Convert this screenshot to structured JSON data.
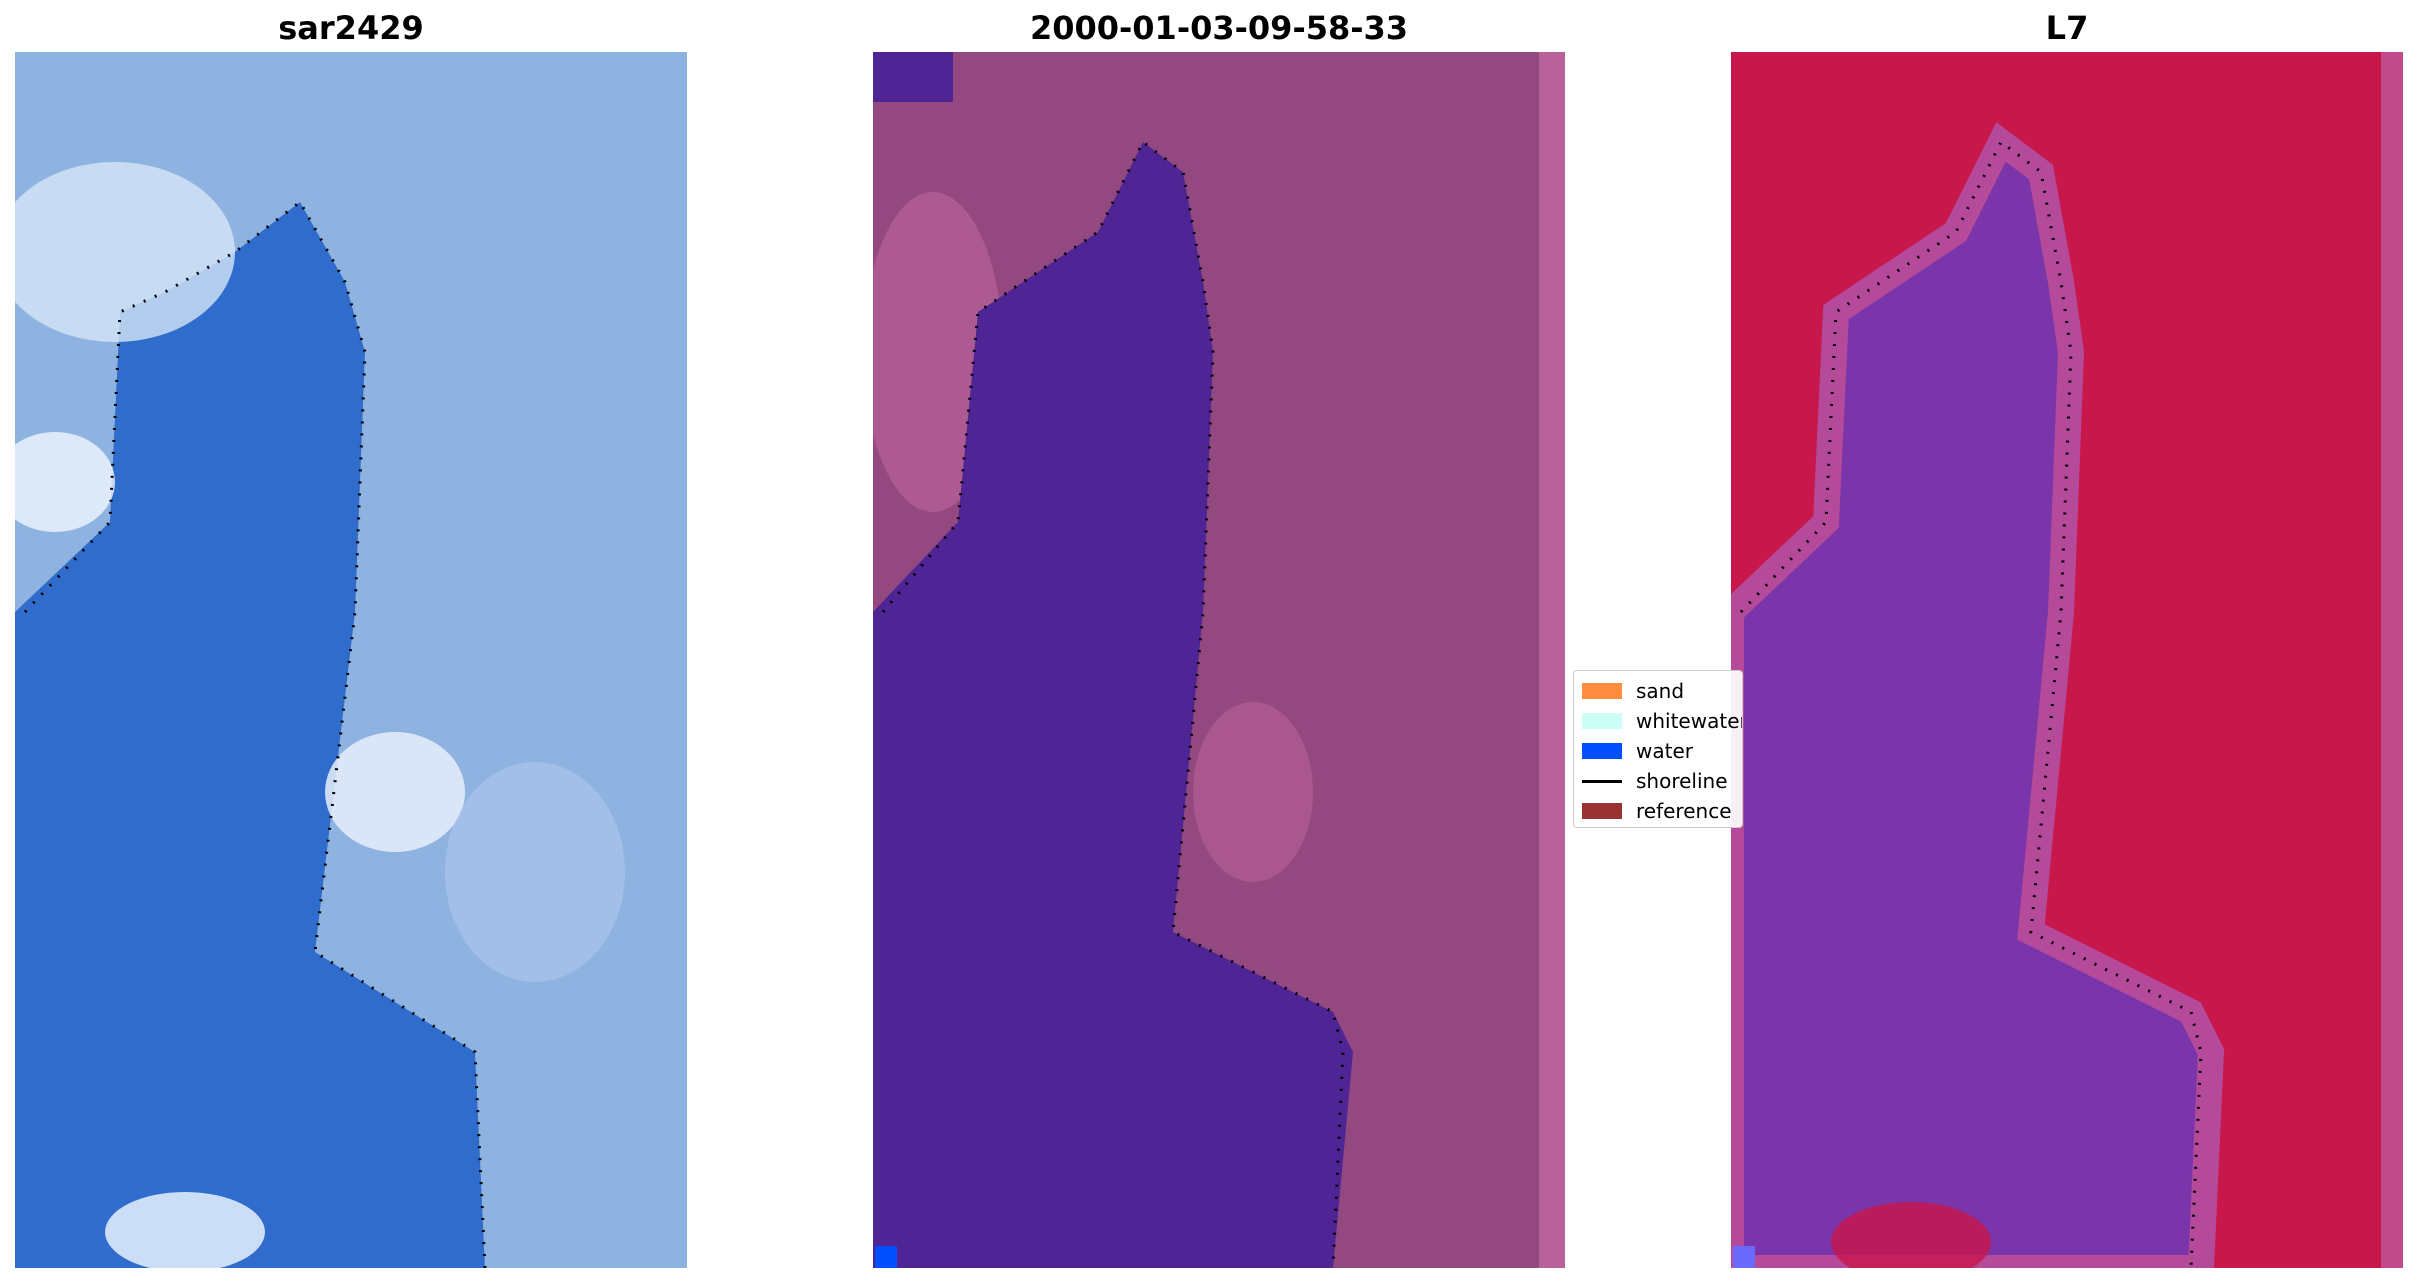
{
  "panels": [
    {
      "title": "sar2429"
    },
    {
      "title": "2000-01-03-09-58-33"
    },
    {
      "title": "L7"
    }
  ],
  "legend": {
    "items": [
      {
        "label": "sand",
        "color": "#ff8c3f"
      },
      {
        "label": "whitewater",
        "color": "#ccfff6"
      },
      {
        "label": "water",
        "color": "#0050ff"
      },
      {
        "label": "shoreline",
        "color": "#000000"
      },
      {
        "label": "reference",
        "color": "#993333"
      }
    ]
  },
  "colors": {
    "rgb_water": "#2f6ccb",
    "rgb_land": "#8fb3e0",
    "rgb_whitewater": "#e6f0ff",
    "class_water": "#4f2596",
    "class_land": "#93487f",
    "class_land_light": "#b9629a",
    "ndwi_water": "#7b35aa",
    "ndwi_land": "#c8174a"
  }
}
